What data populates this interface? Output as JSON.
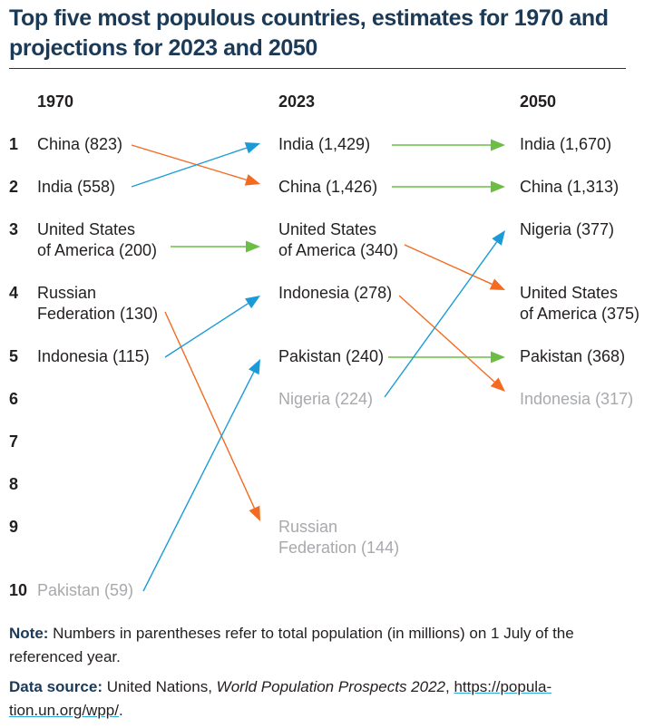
{
  "title": "Top five most populous countries, estimates for 1970 and projections for 2023 and 2050",
  "colors": {
    "title": "#1b3a57",
    "rise": "#1a9bd7",
    "fall": "#f26b21",
    "same": "#6cbd45",
    "muted_text": "#a7a9ac"
  },
  "columns": [
    {
      "year": "1970"
    },
    {
      "year": "2023"
    },
    {
      "year": "2050"
    }
  ],
  "ranks": [
    "1",
    "2",
    "3",
    "4",
    "5",
    "6",
    "7",
    "8",
    "9",
    "10"
  ],
  "chart_data": {
    "type": "table",
    "title": "Top five most populous countries, estimates for 1970 and projections for 2023 and 2050",
    "unit": "population in millions",
    "years": [
      "1970",
      "2023",
      "2050"
    ],
    "entries": {
      "1970": [
        {
          "rank": 1,
          "country": "China",
          "population": 823
        },
        {
          "rank": 2,
          "country": "India",
          "population": 558
        },
        {
          "rank": 3,
          "country": "United States of America",
          "population": 200
        },
        {
          "rank": 4,
          "country": "Russian Federation",
          "population": 130
        },
        {
          "rank": 5,
          "country": "Indonesia",
          "population": 115
        },
        {
          "rank": 10,
          "country": "Pakistan",
          "population": 59,
          "outside_top5": true
        }
      ],
      "2023": [
        {
          "rank": 1,
          "country": "India",
          "population": 1429
        },
        {
          "rank": 2,
          "country": "China",
          "population": 1426
        },
        {
          "rank": 3,
          "country": "United States of America",
          "population": 340
        },
        {
          "rank": 4,
          "country": "Indonesia",
          "population": 278
        },
        {
          "rank": 5,
          "country": "Pakistan",
          "population": 240
        },
        {
          "rank": 6,
          "country": "Nigeria",
          "population": 224,
          "outside_top5": true
        },
        {
          "rank": 9,
          "country": "Russian Federation",
          "population": 144,
          "outside_top5": true
        }
      ],
      "2050": [
        {
          "rank": 1,
          "country": "India",
          "population": 1670
        },
        {
          "rank": 2,
          "country": "China",
          "population": 1313
        },
        {
          "rank": 3,
          "country": "Nigeria",
          "population": 377
        },
        {
          "rank": 4,
          "country": "United States of America",
          "population": 375
        },
        {
          "rank": 5,
          "country": "Pakistan",
          "population": 368
        },
        {
          "rank": 6,
          "country": "Indonesia",
          "population": 317,
          "outside_top5": true
        }
      ]
    },
    "transitions": [
      {
        "country": "China",
        "from": "1970",
        "from_rank": 1,
        "to": "2023",
        "to_rank": 2,
        "direction": "fall"
      },
      {
        "country": "India",
        "from": "1970",
        "from_rank": 2,
        "to": "2023",
        "to_rank": 1,
        "direction": "rise"
      },
      {
        "country": "United States of America",
        "from": "1970",
        "from_rank": 3,
        "to": "2023",
        "to_rank": 3,
        "direction": "same"
      },
      {
        "country": "Russian Federation",
        "from": "1970",
        "from_rank": 4,
        "to": "2023",
        "to_rank": 9,
        "direction": "fall"
      },
      {
        "country": "Indonesia",
        "from": "1970",
        "from_rank": 5,
        "to": "2023",
        "to_rank": 4,
        "direction": "rise"
      },
      {
        "country": "Pakistan",
        "from": "1970",
        "from_rank": 10,
        "to": "2023",
        "to_rank": 5,
        "direction": "rise"
      },
      {
        "country": "India",
        "from": "2023",
        "from_rank": 1,
        "to": "2050",
        "to_rank": 1,
        "direction": "same"
      },
      {
        "country": "China",
        "from": "2023",
        "from_rank": 2,
        "to": "2050",
        "to_rank": 2,
        "direction": "same"
      },
      {
        "country": "United States of America",
        "from": "2023",
        "from_rank": 3,
        "to": "2050",
        "to_rank": 4,
        "direction": "fall"
      },
      {
        "country": "Indonesia",
        "from": "2023",
        "from_rank": 4,
        "to": "2050",
        "to_rank": 6,
        "direction": "fall"
      },
      {
        "country": "Pakistan",
        "from": "2023",
        "from_rank": 5,
        "to": "2050",
        "to_rank": 5,
        "direction": "same"
      },
      {
        "country": "Nigeria",
        "from": "2023",
        "from_rank": 6,
        "to": "2050",
        "to_rank": 3,
        "direction": "rise"
      }
    ]
  },
  "labels": {
    "c1970": [
      {
        "line1": "China (823)",
        "line2": ""
      },
      {
        "line1": "India (558)",
        "line2": ""
      },
      {
        "line1": "United States",
        "line2": "of America (200)"
      },
      {
        "line1": "Russian",
        "line2": "Federation (130)"
      },
      {
        "line1": "Indonesia (115)",
        "line2": ""
      },
      {
        "line1": "Pakistan (59)",
        "line2": ""
      }
    ],
    "c2023": [
      {
        "line1": "India (1,429)",
        "line2": ""
      },
      {
        "line1": "China (1,426)",
        "line2": ""
      },
      {
        "line1": "United States",
        "line2": "of America (340)"
      },
      {
        "line1": "Indonesia (278)",
        "line2": ""
      },
      {
        "line1": "Pakistan (240)",
        "line2": ""
      },
      {
        "line1": "Nigeria (224)",
        "line2": ""
      },
      {
        "line1": "Russian",
        "line2": "Federation (144)"
      }
    ],
    "c2050": [
      {
        "line1": "India (1,670)",
        "line2": ""
      },
      {
        "line1": "China (1,313)",
        "line2": ""
      },
      {
        "line1": "Nigeria (377)",
        "line2": ""
      },
      {
        "line1": "United States",
        "line2": "of America (375)"
      },
      {
        "line1": "Pakistan (368)",
        "line2": ""
      },
      {
        "line1": "Indonesia (317)",
        "line2": ""
      }
    ]
  },
  "note": {
    "label": "Note:",
    "text": " Numbers in parentheses refer to total population (in millions) on 1 July of the referenced year."
  },
  "source": {
    "label": "Data source:",
    "text_before": " United Nations, ",
    "publication": "World Population Prospects 2022",
    "text_mid": ", ",
    "link": "https://popula-tion.un.org/wpp/",
    "text_after": "."
  }
}
